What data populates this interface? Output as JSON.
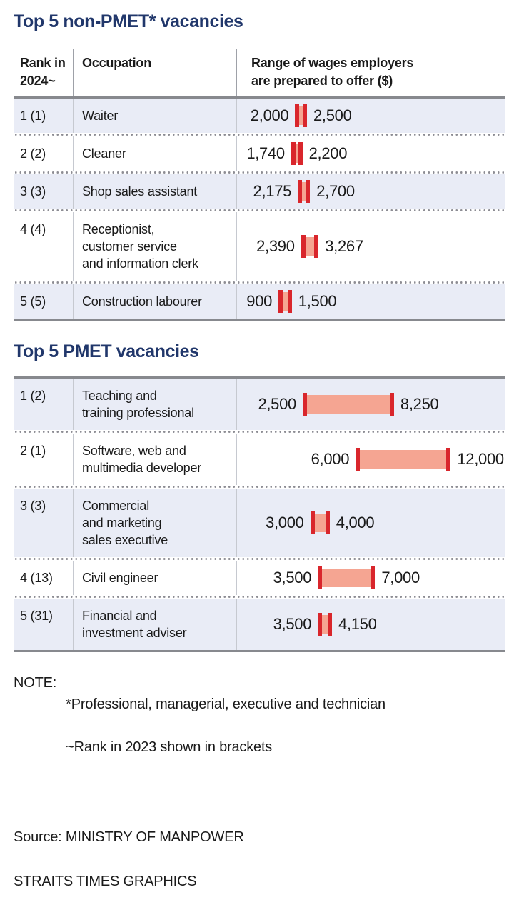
{
  "sections": [
    {
      "title": "Top 5 non-PMET* vacancies"
    },
    {
      "title": "Top 5 PMET vacancies"
    }
  ],
  "chart_data": [
    {
      "type": "table",
      "title": "Top 5 non-PMET* vacancies",
      "unit": "$",
      "columns": [
        "Rank in\n2024~",
        "Occupation",
        "Range of wages employers\nare prepared to offer ($)"
      ],
      "rows": [
        {
          "rank": "1 (1)",
          "occupation": "Waiter",
          "wage_min": 2000,
          "wage_max": 2500,
          "min_label": "2,000",
          "max_label": "2,500"
        },
        {
          "rank": "2 (2)",
          "occupation": "Cleaner",
          "wage_min": 1740,
          "wage_max": 2200,
          "min_label": "1,740",
          "max_label": "2,200"
        },
        {
          "rank": "3 (3)",
          "occupation": "Shop sales assistant",
          "wage_min": 2175,
          "wage_max": 2700,
          "min_label": "2,175",
          "max_label": "2,700"
        },
        {
          "rank": "4 (4)",
          "occupation": "Receptionist,\ncustomer service\nand information clerk",
          "wage_min": 2390,
          "wage_max": 3267,
          "min_label": "2,390",
          "max_label": "3,267"
        },
        {
          "rank": "5 (5)",
          "occupation": "Construction labourer",
          "wage_min": 900,
          "wage_max": 1500,
          "min_label": "900",
          "max_label": "1,500"
        }
      ]
    },
    {
      "type": "table",
      "title": "Top 5 PMET vacancies",
      "unit": "$",
      "columns": [
        "Rank in\n2024~",
        "Occupation",
        "Range of wages employers\nare prepared to offer ($)"
      ],
      "rows": [
        {
          "rank": "1 (2)",
          "occupation": "Teaching and\ntraining professional",
          "wage_min": 2500,
          "wage_max": 8250,
          "min_label": "2,500",
          "max_label": "8,250"
        },
        {
          "rank": "2 (1)",
          "occupation": "Software, web and\nmultimedia developer",
          "wage_min": 6000,
          "wage_max": 12000,
          "min_label": "6,000",
          "max_label": "12,000"
        },
        {
          "rank": "3 (3)",
          "occupation": "Commercial\nand marketing\nsales executive",
          "wage_min": 3000,
          "wage_max": 4000,
          "min_label": "3,000",
          "max_label": "4,000"
        },
        {
          "rank": "4 (13)",
          "occupation": "Civil engineer",
          "wage_min": 3500,
          "wage_max": 7000,
          "min_label": "3,500",
          "max_label": "7,000"
        },
        {
          "rank": "5 (31)",
          "occupation": "Financial and\ninvestment adviser",
          "wage_min": 3500,
          "wage_max": 4150,
          "min_label": "3,500",
          "max_label": "4,150"
        }
      ]
    }
  ],
  "note": {
    "label": "NOTE:",
    "line1": "*Professional, managerial, executive and technician",
    "line2": "~Rank in 2023 shown in brackets"
  },
  "source": {
    "line1": "Source: MINISTRY OF MANPOWER",
    "line2": "STRAITS TIMES GRAPHICS"
  },
  "colors": {
    "title_navy": "#21376b",
    "row_shade": "#e9ecf6",
    "bar_cap_red": "#d9262c",
    "bar_fill_salmon": "#f5a592",
    "rule_dark": "#87898e",
    "rule_light": "#b9bbc2",
    "dot_gray": "#8d8d94",
    "text": "#1a1a1a"
  }
}
